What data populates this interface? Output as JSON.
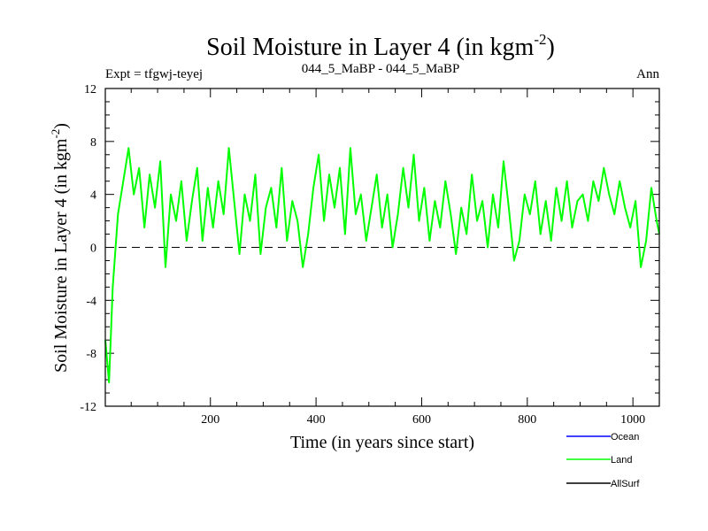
{
  "chart_data": {
    "type": "line",
    "title": "Soil Moisture in Layer 4 (in kgm",
    "title_sup": "-2",
    "title_close": ")",
    "subtitle_left": "Expt = tfgwj-teyej",
    "subtitle_center": "044_5_MaBP - 044_5_MaBP",
    "subtitle_right": "Ann",
    "xlabel": "Time (in years since start)",
    "ylabel": "Soil Moisture in Layer 4 (in kgm",
    "ylabel_sup": "-2",
    "ylabel_close": ")",
    "xlim": [
      1,
      1050
    ],
    "ylim": [
      -12,
      12
    ],
    "xticks": [
      200,
      400,
      600,
      800,
      1000
    ],
    "xtick_labels": [
      "200",
      "400",
      "600",
      "800",
      "1000"
    ],
    "yticks": [
      -12,
      -8,
      -4,
      0,
      4,
      8,
      12
    ],
    "ytick_labels": [
      "-12",
      "-8",
      "-4",
      "0",
      "4",
      "8",
      "12"
    ],
    "zero_line": true,
    "legend_position": "bottom-right",
    "series": [
      {
        "name": "Ocean",
        "color": "#0000ff",
        "values": []
      },
      {
        "name": "Land",
        "color": "#00ff00",
        "x": [
          1,
          8,
          15,
          25,
          35,
          45,
          55,
          65,
          75,
          85,
          95,
          105,
          115,
          125,
          135,
          145,
          155,
          165,
          175,
          185,
          195,
          205,
          215,
          225,
          235,
          245,
          255,
          265,
          275,
          285,
          295,
          305,
          315,
          325,
          335,
          345,
          355,
          365,
          375,
          385,
          395,
          405,
          415,
          425,
          435,
          445,
          455,
          465,
          475,
          485,
          495,
          505,
          515,
          525,
          535,
          545,
          555,
          565,
          575,
          585,
          595,
          605,
          615,
          625,
          635,
          645,
          655,
          665,
          675,
          685,
          695,
          705,
          715,
          725,
          735,
          745,
          755,
          765,
          775,
          785,
          795,
          805,
          815,
          825,
          835,
          845,
          855,
          865,
          875,
          885,
          895,
          905,
          915,
          925,
          935,
          945,
          955,
          965,
          975,
          985,
          995,
          1005,
          1015,
          1025,
          1035,
          1045,
          1050
        ],
        "values": [
          -7.0,
          -10.2,
          -3.0,
          2.5,
          5.0,
          7.5,
          4.0,
          6.0,
          1.5,
          5.5,
          3.0,
          6.5,
          -1.5,
          4.0,
          2.0,
          5.0,
          0.5,
          3.5,
          6.0,
          0.5,
          4.5,
          1.5,
          5.0,
          2.5,
          7.5,
          3.5,
          -0.5,
          4.0,
          2.0,
          5.5,
          -0.5,
          3.0,
          4.5,
          1.5,
          6.0,
          0.5,
          3.5,
          2.0,
          -1.5,
          1.0,
          4.5,
          7.0,
          2.0,
          5.5,
          3.0,
          6.0,
          1.0,
          7.5,
          2.5,
          4.0,
          0.5,
          3.0,
          5.5,
          1.5,
          4.0,
          0.0,
          2.5,
          6.0,
          3.0,
          7.0,
          2.0,
          4.5,
          0.5,
          3.5,
          1.5,
          5.0,
          2.5,
          -0.5,
          3.0,
          1.0,
          5.5,
          2.0,
          3.5,
          0.0,
          4.0,
          1.5,
          6.5,
          3.0,
          -1.0,
          0.5,
          4.0,
          2.5,
          5.0,
          1.0,
          3.5,
          0.5,
          4.5,
          2.0,
          5.0,
          1.5,
          3.5,
          4.0,
          2.0,
          5.0,
          3.5,
          6.0,
          4.0,
          2.5,
          5.0,
          3.0,
          1.5,
          3.5,
          -1.5,
          0.5,
          4.5,
          2.0,
          1.0
        ]
      },
      {
        "name": "AllSurf",
        "color": "#000000",
        "values": []
      }
    ]
  }
}
